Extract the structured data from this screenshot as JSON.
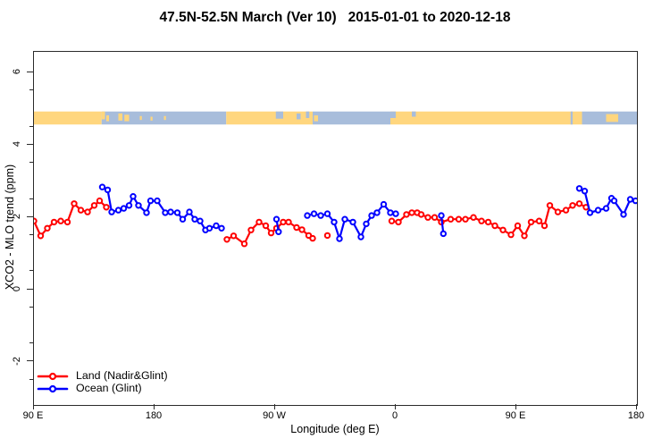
{
  "chart_data": {
    "type": "line",
    "title": "47.5N-52.5N March (Ver 10)   2015-01-01 to 2020-12-18",
    "xlabel": "Longitude (deg E)",
    "ylabel": "XCO2 - MLO trend (ppm)",
    "grid": false,
    "x_axis": {
      "unit": "deg east of 90E (axis wraps 90E → 180 → 90W → 0 → 90E → 180)",
      "range": [
        0,
        450
      ],
      "ticks": [
        {
          "offset": 0,
          "label": "90 E"
        },
        {
          "offset": 90,
          "label": "180"
        },
        {
          "offset": 180,
          "label": "90 W"
        },
        {
          "offset": 270,
          "label": "0"
        },
        {
          "offset": 360,
          "label": "90 E"
        },
        {
          "offset": 450,
          "label": "180"
        }
      ]
    },
    "y_axis": {
      "min": -3.19,
      "max": 6.58,
      "major_ticks": [
        -2,
        0,
        2,
        4,
        6
      ],
      "major_tick_labels": [
        "-2",
        "0",
        "2",
        "4",
        "6"
      ],
      "minor_ticks": [
        -2.5,
        -1.5,
        -0.5,
        0.5,
        1.5,
        2.5,
        3.5,
        4.5,
        5.5
      ]
    },
    "legend": {
      "position": "bottom-left",
      "entries": [
        {
          "label": "Land (Nadir&Glint)",
          "color": "#ff0000"
        },
        {
          "label": "Ocean (Glint)",
          "color": "#0000ff"
        }
      ]
    },
    "band": {
      "description": "land/ocean mask strip along longitude",
      "y_top_ppm": 4.93,
      "y_bottom_ppm": 4.57,
      "colors": {
        "land": "#FFD67E",
        "ocean": "#A8BDDB"
      },
      "segments": [
        {
          "surface": "land",
          "from": 0,
          "to": 50.5
        },
        {
          "surface": "ocean",
          "from": 50.5,
          "to": 143.5
        },
        {
          "surface": "land",
          "from": 143.5,
          "to": 208
        },
        {
          "surface": "ocean",
          "from": 208,
          "to": 266
        },
        {
          "surface": "land",
          "from": 266,
          "to": 409
        },
        {
          "surface": "ocean",
          "from": 409,
          "to": 450
        }
      ],
      "patches": [
        {
          "surface": "land",
          "from": 50.5,
          "to": 53,
          "top": 0,
          "h": 0.6
        },
        {
          "surface": "land",
          "from": 54,
          "to": 56,
          "top": 0.3,
          "h": 0.45
        },
        {
          "surface": "land",
          "from": 63,
          "to": 66,
          "top": 0.15,
          "h": 0.55
        },
        {
          "surface": "land",
          "from": 67.5,
          "to": 71,
          "top": 0.25,
          "h": 0.5
        },
        {
          "surface": "land",
          "from": 79,
          "to": 80.5,
          "top": 0.35,
          "h": 0.3
        },
        {
          "surface": "land",
          "from": 87,
          "to": 88.5,
          "top": 0.4,
          "h": 0.3
        },
        {
          "surface": "land",
          "from": 97,
          "to": 98.5,
          "top": 0.35,
          "h": 0.3
        },
        {
          "surface": "ocean",
          "from": 180.5,
          "to": 186,
          "top": 0,
          "h": 0.55
        },
        {
          "surface": "ocean",
          "from": 196,
          "to": 199,
          "top": 0.15,
          "h": 0.45
        },
        {
          "surface": "ocean",
          "from": 203,
          "to": 205.5,
          "top": 0,
          "h": 0.5
        },
        {
          "surface": "land",
          "from": 209,
          "to": 212,
          "top": 0.3,
          "h": 0.45
        },
        {
          "surface": "ocean",
          "from": 266,
          "to": 270,
          "top": 0,
          "h": 0.5
        },
        {
          "surface": "ocean",
          "from": 282,
          "to": 285,
          "top": 0,
          "h": 0.4
        },
        {
          "surface": "ocean",
          "from": 400.5,
          "to": 402,
          "top": 0,
          "h": 1
        },
        {
          "surface": "land",
          "from": 427,
          "to": 436,
          "top": 0.2,
          "h": 0.6
        }
      ]
    },
    "series": [
      {
        "name": "Land (Nadir&Glint)",
        "color": "#ff0000",
        "marker": "open-circle",
        "segments": [
          [
            [
              0,
              1.9
            ],
            [
              5,
              1.49
            ],
            [
              10,
              1.7
            ],
            [
              15,
              1.87
            ],
            [
              20,
              1.9
            ],
            [
              25,
              1.87
            ],
            [
              30,
              2.38
            ],
            [
              35,
              2.2
            ],
            [
              40,
              2.15
            ],
            [
              45,
              2.33
            ],
            [
              49,
              2.46
            ],
            [
              54,
              2.28
            ]
          ],
          [
            [
              144,
              1.39
            ],
            [
              149,
              1.49
            ],
            [
              157,
              1.27
            ],
            [
              162,
              1.65
            ],
            [
              168,
              1.87
            ],
            [
              173,
              1.77
            ],
            [
              177,
              1.57
            ],
            [
              181,
              1.7
            ],
            [
              186,
              1.87
            ],
            [
              190,
              1.87
            ],
            [
              196,
              1.72
            ],
            [
              200,
              1.66
            ],
            [
              205,
              1.5
            ],
            [
              208,
              1.42
            ]
          ],
          [
            [
              267,
              1.9
            ],
            [
              272,
              1.87
            ],
            [
              278,
              2.08
            ],
            [
              282,
              2.13
            ],
            [
              286,
              2.13
            ],
            [
              289,
              2.08
            ],
            [
              294,
              2.0
            ],
            [
              299,
              2.0
            ],
            [
              304,
              1.87
            ],
            [
              311,
              1.95
            ],
            [
              317,
              1.95
            ],
            [
              322,
              1.95
            ],
            [
              328,
              2.0
            ],
            [
              334,
              1.9
            ],
            [
              339,
              1.87
            ],
            [
              344,
              1.77
            ],
            [
              350,
              1.65
            ],
            [
              356,
              1.52
            ],
            [
              361,
              1.77
            ],
            [
              366,
              1.49
            ],
            [
              371,
              1.87
            ],
            [
              377,
              1.9
            ],
            [
              381,
              1.77
            ],
            [
              385,
              2.33
            ],
            [
              391,
              2.15
            ],
            [
              397,
              2.2
            ],
            [
              402,
              2.33
            ],
            [
              407,
              2.38
            ],
            [
              412,
              2.28
            ]
          ]
        ],
        "isolated_points": [
          [
            219,
            1.5
          ]
        ]
      },
      {
        "name": "Ocean (Glint)",
        "color": "#0000ff",
        "marker": "open-circle",
        "segments": [
          [
            [
              51,
              2.84
            ],
            [
              55,
              2.76
            ],
            [
              58,
              2.15
            ],
            [
              63,
              2.2
            ],
            [
              67,
              2.25
            ],
            [
              71,
              2.33
            ],
            [
              74,
              2.58
            ],
            [
              78,
              2.33
            ],
            [
              84,
              2.13
            ],
            [
              87,
              2.46
            ],
            [
              92,
              2.46
            ],
            [
              98,
              2.13
            ],
            [
              102,
              2.15
            ],
            [
              107,
              2.13
            ],
            [
              111,
              1.95
            ],
            [
              116,
              2.15
            ],
            [
              120,
              1.95
            ],
            [
              124,
              1.9
            ],
            [
              128,
              1.65
            ],
            [
              131,
              1.7
            ],
            [
              136,
              1.77
            ],
            [
              140,
              1.7
            ]
          ],
          [
            [
              181,
              1.95
            ],
            [
              182.5,
              1.6
            ]
          ],
          [
            [
              204,
              2.05
            ],
            [
              209,
              2.1
            ],
            [
              214,
              2.05
            ],
            [
              219,
              2.1
            ],
            [
              224,
              1.87
            ],
            [
              228,
              1.41
            ],
            [
              232,
              1.95
            ],
            [
              238,
              1.87
            ],
            [
              244,
              1.46
            ],
            [
              248,
              1.82
            ],
            [
              252,
              2.05
            ],
            [
              256,
              2.13
            ],
            [
              261,
              2.36
            ],
            [
              266,
              2.13
            ],
            [
              270,
              2.1
            ]
          ],
          [
            [
              304,
              2.05
            ],
            [
              305.5,
              1.55
            ]
          ],
          [
            [
              407,
              2.8
            ],
            [
              411,
              2.73
            ],
            [
              415,
              2.13
            ],
            [
              421,
              2.2
            ],
            [
              427,
              2.25
            ],
            [
              431,
              2.53
            ],
            [
              433,
              2.46
            ],
            [
              440,
              2.08
            ],
            [
              445,
              2.5
            ],
            [
              449,
              2.46
            ]
          ]
        ],
        "isolated_points": []
      }
    ]
  }
}
